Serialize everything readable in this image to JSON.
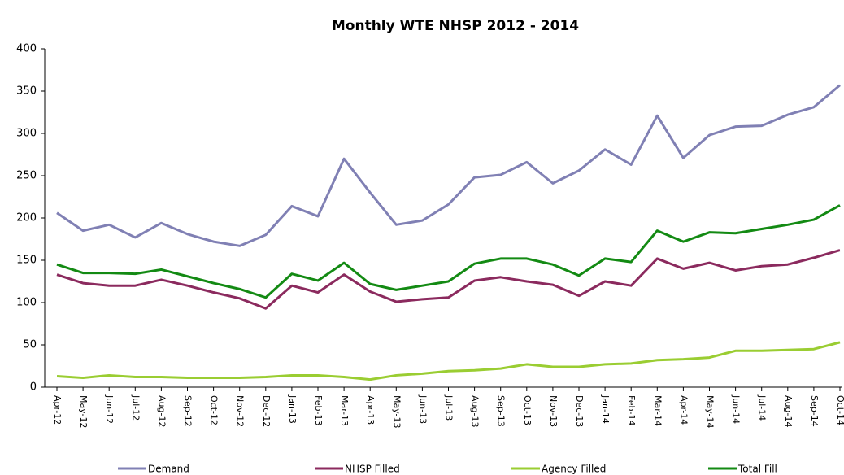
{
  "chart_data": {
    "type": "line",
    "title": "Monthly WTE NHSP 2012 - 2014",
    "categories": [
      "Apr-12",
      "May-12",
      "Jun-12",
      "Jul-12",
      "Aug-12",
      "Sep-12",
      "Oct-12",
      "Nov-12",
      "Dec-12",
      "Jan-13",
      "Feb-13",
      "Mar-13",
      "Apr-13",
      "May-13",
      "Jun-13",
      "Jul-13",
      "Aug-13",
      "Sep-13",
      "Oct-13",
      "Nov-13",
      "Dec-13",
      "Jan-14",
      "Feb-14",
      "Mar-14",
      "Apr-14",
      "May-14",
      "Jun-14",
      "Jul-14",
      "Aug-14",
      "Sep-14",
      "Oct-14"
    ],
    "series": [
      {
        "name": "Demand",
        "color": "#8080b4",
        "values": [
          206,
          185,
          192,
          177,
          194,
          181,
          172,
          167,
          180,
          214,
          202,
          270,
          230,
          192,
          197,
          216,
          248,
          251,
          266,
          241,
          256,
          281,
          263,
          321,
          271,
          298,
          308,
          309,
          322,
          331,
          357
        ]
      },
      {
        "name": "NHSP Filled",
        "color": "#8b2a5e",
        "values": [
          133,
          123,
          120,
          120,
          127,
          120,
          112,
          105,
          93,
          120,
          112,
          133,
          113,
          101,
          104,
          106,
          126,
          130,
          125,
          121,
          108,
          125,
          120,
          152,
          140,
          147,
          138,
          143,
          145,
          153,
          162
        ]
      },
      {
        "name": "Agency Filled",
        "color": "#9acd32",
        "values": [
          13,
          11,
          14,
          12,
          12,
          11,
          11,
          11,
          12,
          14,
          14,
          12,
          9,
          14,
          16,
          19,
          20,
          22,
          27,
          24,
          24,
          27,
          28,
          32,
          33,
          35,
          43,
          43,
          44,
          45,
          53
        ]
      },
      {
        "name": "Total Fill",
        "color": "#138a13",
        "values": [
          145,
          135,
          135,
          134,
          139,
          131,
          123,
          116,
          106,
          134,
          126,
          147,
          122,
          115,
          120,
          125,
          146,
          152,
          152,
          145,
          132,
          152,
          148,
          185,
          172,
          183,
          182,
          187,
          192,
          198,
          215
        ]
      }
    ],
    "ylim": [
      0,
      400
    ],
    "yticks": [
      0,
      50,
      100,
      150,
      200,
      250,
      300,
      350,
      400
    ],
    "grid": false,
    "legend": "bottom"
  }
}
